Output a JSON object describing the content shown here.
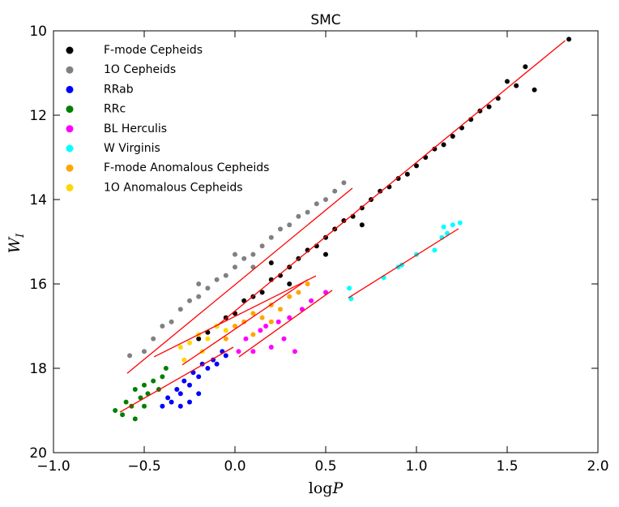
{
  "chart_data": {
    "type": "scatter",
    "title": "SMC",
    "xlabel": {
      "main": "log",
      "var": "P"
    },
    "ylabel": {
      "main": "W",
      "sub": "I"
    },
    "xlim": [
      -1.0,
      2.0
    ],
    "ylim": [
      20,
      10
    ],
    "xticks": [
      {
        "value": -1.0,
        "label": "−1.0"
      },
      {
        "value": -0.5,
        "label": "−0.5"
      },
      {
        "value": 0.0,
        "label": "0.0"
      },
      {
        "value": 0.5,
        "label": "0.5"
      },
      {
        "value": 1.0,
        "label": "1.0"
      },
      {
        "value": 1.5,
        "label": "1.5"
      },
      {
        "value": 2.0,
        "label": "2.0"
      }
    ],
    "yticks": [
      10,
      12,
      14,
      16,
      18,
      20
    ],
    "legend": "upper left",
    "series": [
      {
        "name": "F-mode Cepheids",
        "color": "#000000",
        "x": [
          -0.2,
          -0.15,
          -0.1,
          -0.05,
          0.0,
          0.05,
          0.1,
          0.15,
          0.2,
          0.25,
          0.3,
          0.35,
          0.4,
          0.45,
          0.5,
          0.55,
          0.6,
          0.65,
          0.7,
          0.75,
          0.8,
          0.85,
          0.9,
          0.95,
          1.0,
          1.05,
          1.1,
          1.15,
          1.2,
          1.25,
          1.3,
          1.35,
          1.4,
          1.45,
          1.5,
          1.55,
          1.6,
          1.65,
          1.84,
          0.3,
          0.5,
          0.7,
          0.2
        ],
        "values": [
          17.3,
          17.15,
          17.0,
          16.8,
          16.7,
          16.4,
          16.3,
          16.2,
          15.9,
          15.8,
          15.6,
          15.4,
          15.2,
          15.1,
          14.9,
          14.7,
          14.5,
          14.4,
          14.2,
          14.0,
          13.8,
          13.7,
          13.5,
          13.4,
          13.2,
          13.0,
          12.8,
          12.7,
          12.5,
          12.3,
          12.1,
          11.9,
          11.8,
          11.6,
          11.2,
          11.3,
          10.85,
          11.4,
          10.2,
          16.0,
          15.3,
          14.6,
          15.5
        ]
      },
      {
        "name": "1O Cepheids",
        "color": "#808080",
        "x": [
          -0.58,
          -0.5,
          -0.45,
          -0.4,
          -0.35,
          -0.3,
          -0.25,
          -0.2,
          -0.15,
          -0.1,
          -0.05,
          0.0,
          0.05,
          0.1,
          0.15,
          0.2,
          0.25,
          0.3,
          0.35,
          0.4,
          0.45,
          0.5,
          0.55,
          0.6,
          0.1,
          0.0,
          -0.2
        ],
        "values": [
          17.7,
          17.6,
          17.3,
          17.0,
          16.9,
          16.6,
          16.4,
          16.3,
          16.1,
          15.9,
          15.8,
          15.6,
          15.4,
          15.3,
          15.1,
          14.9,
          14.7,
          14.6,
          14.4,
          14.3,
          14.1,
          14.0,
          13.8,
          13.6,
          15.6,
          15.3,
          16.0
        ]
      },
      {
        "name": "RRab",
        "color": "#0000ff",
        "x": [
          -0.4,
          -0.37,
          -0.35,
          -0.32,
          -0.3,
          -0.28,
          -0.25,
          -0.23,
          -0.2,
          -0.18,
          -0.15,
          -0.12,
          -0.1,
          -0.07,
          -0.05,
          -0.25,
          -0.3,
          -0.2
        ],
        "values": [
          18.9,
          18.7,
          18.8,
          18.5,
          18.6,
          18.3,
          18.4,
          18.1,
          18.2,
          17.9,
          18.0,
          17.8,
          17.9,
          17.6,
          17.7,
          18.8,
          18.9,
          18.6
        ]
      },
      {
        "name": "RRc",
        "color": "#008000",
        "x": [
          -0.66,
          -0.62,
          -0.6,
          -0.57,
          -0.55,
          -0.52,
          -0.5,
          -0.48,
          -0.45,
          -0.42,
          -0.4,
          -0.38,
          -0.55,
          -0.5
        ],
        "values": [
          19.0,
          19.1,
          18.8,
          18.9,
          18.5,
          18.7,
          18.4,
          18.6,
          18.3,
          18.5,
          18.2,
          18.0,
          19.2,
          18.9
        ]
      },
      {
        "name": "BL Herculis",
        "color": "#ff00ff",
        "x": [
          0.02,
          0.06,
          0.1,
          0.14,
          0.17,
          0.2,
          0.24,
          0.27,
          0.3,
          0.33,
          0.37,
          0.42,
          0.5
        ],
        "values": [
          17.6,
          17.3,
          17.6,
          17.1,
          17.0,
          17.5,
          16.9,
          17.3,
          16.8,
          17.6,
          16.6,
          16.4,
          16.2
        ]
      },
      {
        "name": "W Virginis",
        "color": "#00ffff",
        "x": [
          0.63,
          0.64,
          0.82,
          0.9,
          0.92,
          1.0,
          1.1,
          1.14,
          1.15,
          1.17,
          1.2,
          1.24
        ],
        "values": [
          16.1,
          16.35,
          15.85,
          15.6,
          15.55,
          15.3,
          15.2,
          14.9,
          14.65,
          14.8,
          14.6,
          14.55
        ]
      },
      {
        "name": "F-mode Anomalous Cepheids",
        "color": "#ffa500",
        "x": [
          -0.05,
          0.0,
          0.05,
          0.1,
          0.15,
          0.2,
          0.25,
          0.3,
          0.35,
          0.4,
          0.1,
          0.2
        ],
        "values": [
          17.3,
          17.0,
          16.9,
          16.7,
          16.8,
          16.5,
          16.6,
          16.3,
          16.2,
          16.0,
          17.2,
          16.9
        ]
      },
      {
        "name": "1O Anomalous Cepheids",
        "color": "#ffd700",
        "x": [
          -0.3,
          -0.25,
          -0.2,
          -0.15,
          -0.1,
          -0.05,
          -0.28,
          -0.18
        ],
        "values": [
          17.5,
          17.4,
          17.2,
          17.3,
          17.0,
          17.1,
          17.8,
          17.6
        ]
      }
    ],
    "fit_lines": [
      {
        "color": "#ff0000",
        "x": [
          -0.09,
          1.82
        ],
        "values": [
          16.96,
          10.23
        ]
      },
      {
        "color": "#ff0000",
        "x": [
          -0.594,
          0.647
        ],
        "values": [
          18.12,
          13.73
        ]
      },
      {
        "color": "#ff0000",
        "x": [
          -0.634,
          -0.009
        ],
        "values": [
          19.04,
          17.5
        ]
      },
      {
        "color": "#ff0000",
        "x": [
          -0.446,
          0.446
        ],
        "values": [
          17.73,
          15.81
        ]
      },
      {
        "color": "#ff0000",
        "x": [
          -0.29,
          0.4
        ],
        "values": [
          17.92,
          15.9
        ]
      },
      {
        "color": "#ff0000",
        "x": [
          0.022,
          0.536
        ],
        "values": [
          17.73,
          16.15
        ]
      },
      {
        "color": "#ff0000",
        "x": [
          0.625,
          1.232
        ],
        "values": [
          16.33,
          14.69
        ]
      }
    ]
  }
}
